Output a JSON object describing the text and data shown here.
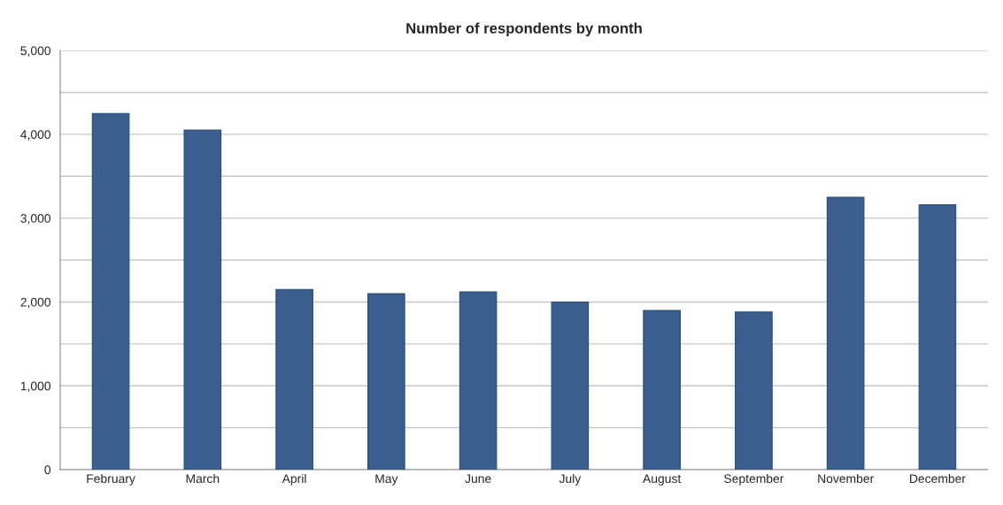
{
  "chart_data": {
    "type": "bar",
    "title": "Number of respondents by month",
    "categories": [
      "February",
      "March",
      "April",
      "May",
      "June",
      "July",
      "August",
      "September",
      "November",
      "December"
    ],
    "values": [
      4250,
      4050,
      2150,
      2100,
      2120,
      2000,
      1900,
      1880,
      3250,
      3160
    ],
    "color": "#3a5f8f",
    "ylim": [
      0,
      5000
    ],
    "yticks": [
      0,
      {
        "value": 500,
        "label": null
      },
      {
        "value": 1000,
        "label": "1,000"
      },
      {
        "value": 1500,
        "label": null
      },
      {
        "value": 2000,
        "label": "2,000"
      },
      {
        "value": 2500,
        "label": null
      },
      {
        "value": 3000,
        "label": "3,000"
      },
      {
        "value": 3500,
        "label": null
      },
      {
        "value": 4000,
        "label": "4,000"
      },
      {
        "value": 4500,
        "label": null
      },
      {
        "value": 5000,
        "label": "5,000"
      }
    ],
    "grid": "y",
    "legend": false
  }
}
